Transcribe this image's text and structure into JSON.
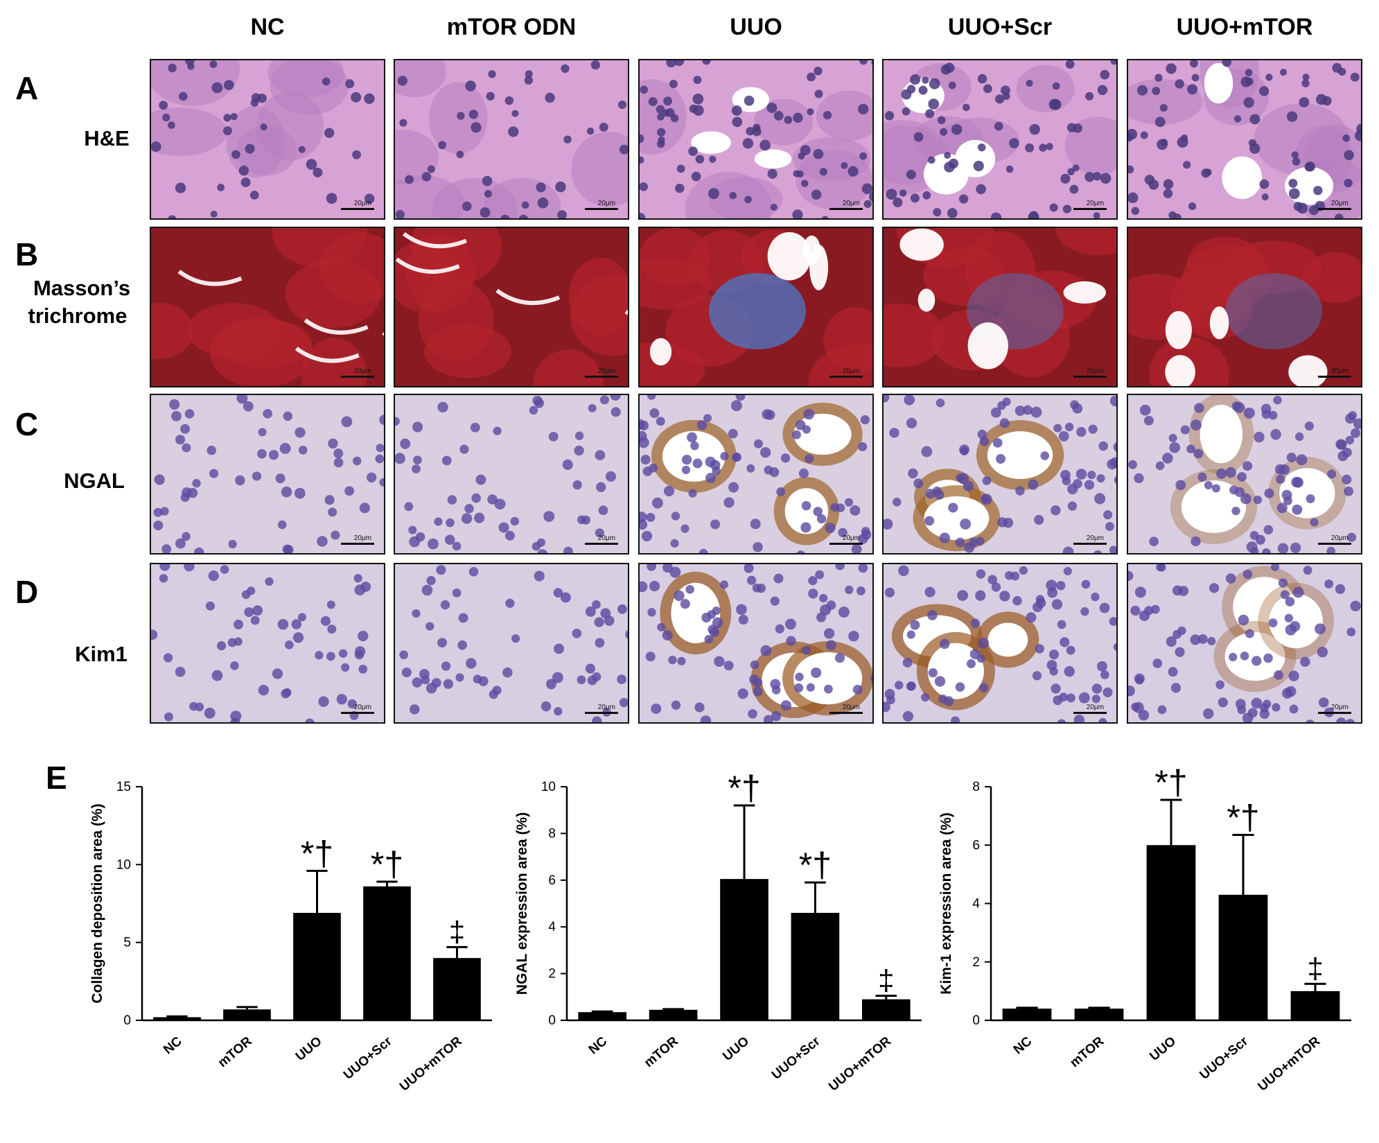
{
  "columns": [
    "NC",
    "mTOR ODN",
    "UUO",
    "UUO+Scr",
    "UUO+mTOR"
  ],
  "panels": {
    "A": {
      "letter": "A",
      "label": "H&E",
      "colors": {
        "bg": "#d7a3d4",
        "cell": "#b77fbf",
        "nucleus": "#4a3a7e",
        "lumen": "#ffffff"
      }
    },
    "B": {
      "letter": "B",
      "label_line1": "Masson’s",
      "label_line2": "trichrome",
      "colors": {
        "bg": "#8a1a22",
        "cell": "#b3232c",
        "fibrosis": "#4a78c8",
        "lumen": "#ffffff"
      }
    },
    "C": {
      "letter": "C",
      "label": "NGAL",
      "colors": {
        "bg": "#d9cfe0",
        "nucleus": "#5b4aa0",
        "stain": "#a0652a",
        "lumen": "#ffffff"
      }
    },
    "D": {
      "letter": "D",
      "label": "Kim1",
      "colors": {
        "bg": "#d7cee2",
        "nucleus": "#5b4aa0",
        "stain": "#9a5a22",
        "lumen": "#ffffff"
      }
    }
  },
  "scale_label": "20μm",
  "panel_E_letter": "E",
  "chart_data": [
    {
      "type": "bar",
      "categories": [
        "NC",
        "mTOR",
        "UUO",
        "UUO+Scr",
        "UUO+mTOR"
      ],
      "values": [
        0.2,
        0.7,
        6.9,
        8.6,
        4.0
      ],
      "errors": [
        0.05,
        0.15,
        2.7,
        0.3,
        0.7
      ],
      "annotations": [
        "",
        "",
        "*†",
        "*†",
        "‡"
      ],
      "ylabel": "Collagen deposition area (%)",
      "yticks": [
        0,
        5,
        10,
        15
      ],
      "ylim": [
        0,
        15
      ]
    },
    {
      "type": "bar",
      "categories": [
        "NC",
        "mTOR",
        "UUO",
        "UUO+Scr",
        "UUO+mTOR"
      ],
      "values": [
        0.35,
        0.45,
        6.05,
        4.6,
        0.9
      ],
      "errors": [
        0.03,
        0.03,
        3.15,
        1.3,
        0.15
      ],
      "annotations": [
        "",
        "",
        "*†",
        "*†",
        "‡"
      ],
      "ylabel": "NGAL expression area (%)",
      "yticks": [
        0,
        2,
        4,
        6,
        8,
        10
      ],
      "ylim": [
        0,
        10
      ]
    },
    {
      "type": "bar",
      "categories": [
        "NC",
        "mTOR",
        "UUO",
        "UUO+Scr",
        "UUO+mTOR"
      ],
      "values": [
        0.4,
        0.4,
        6.0,
        4.3,
        1.0
      ],
      "errors": [
        0.03,
        0.03,
        1.55,
        2.05,
        0.25
      ],
      "annotations": [
        "",
        "",
        "*†",
        "*†",
        "‡"
      ],
      "ylabel": "Kim-1 expression area (%)",
      "yticks": [
        0,
        2,
        4,
        6,
        8
      ],
      "ylim": [
        0,
        8
      ]
    }
  ]
}
